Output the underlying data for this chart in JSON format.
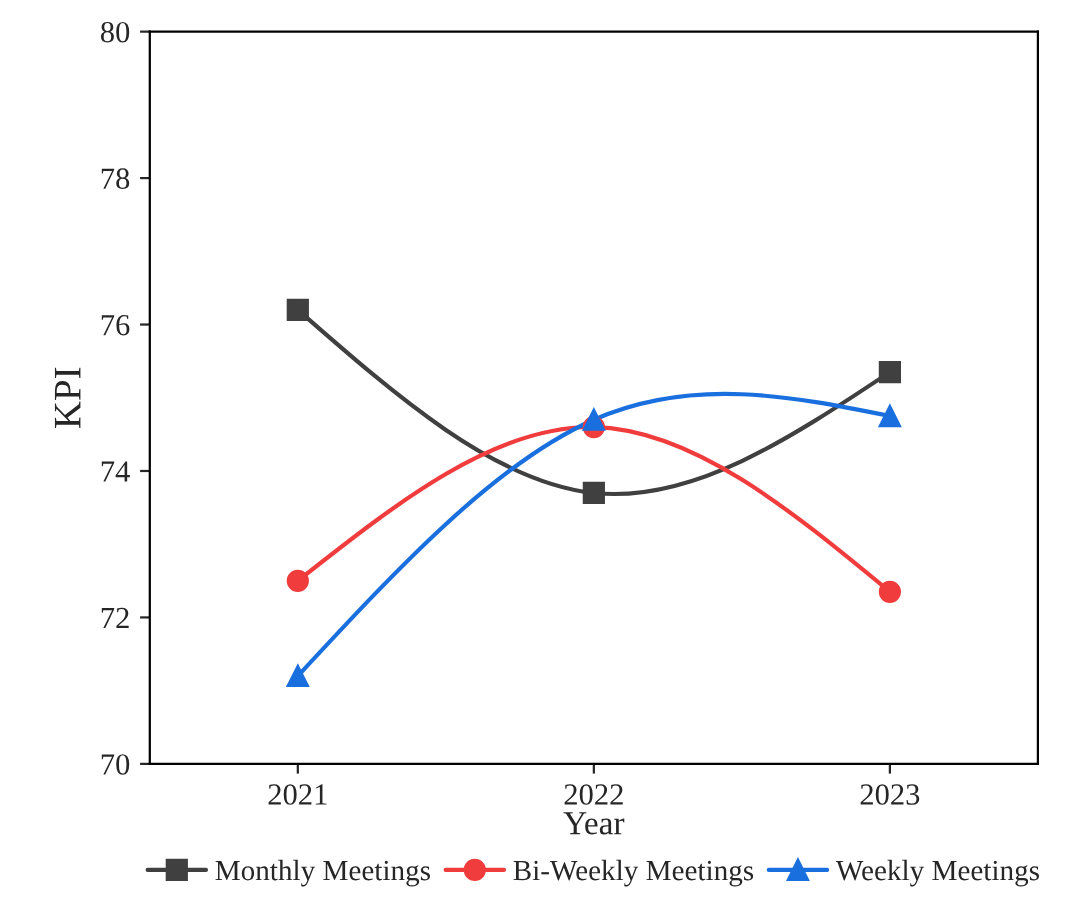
{
  "chart_data": {
    "type": "line",
    "xlabel": "Year",
    "ylabel": "KPI",
    "x": [
      2021,
      2022,
      2023
    ],
    "series": [
      {
        "name": "Monthly Meetings",
        "color": "#404040",
        "marker": "square",
        "values": [
          76.2,
          73.7,
          75.35
        ]
      },
      {
        "name": "Bi-Weekly Meetings",
        "color": "#f03c3c",
        "marker": "circle",
        "values": [
          72.5,
          74.6,
          72.35
        ]
      },
      {
        "name": "Weekly Meetings",
        "color": "#1a6fdf",
        "marker": "triangle",
        "values": [
          71.2,
          74.7,
          74.75
        ]
      }
    ],
    "xlim": [
      2020.5,
      2023.5
    ],
    "xticks": [
      2021,
      2022,
      2023
    ],
    "ylim": [
      70,
      80
    ],
    "yticks": [
      70,
      72,
      74,
      76,
      78,
      80
    ],
    "grid": false,
    "legend": "bottom",
    "line_style": "solid"
  }
}
